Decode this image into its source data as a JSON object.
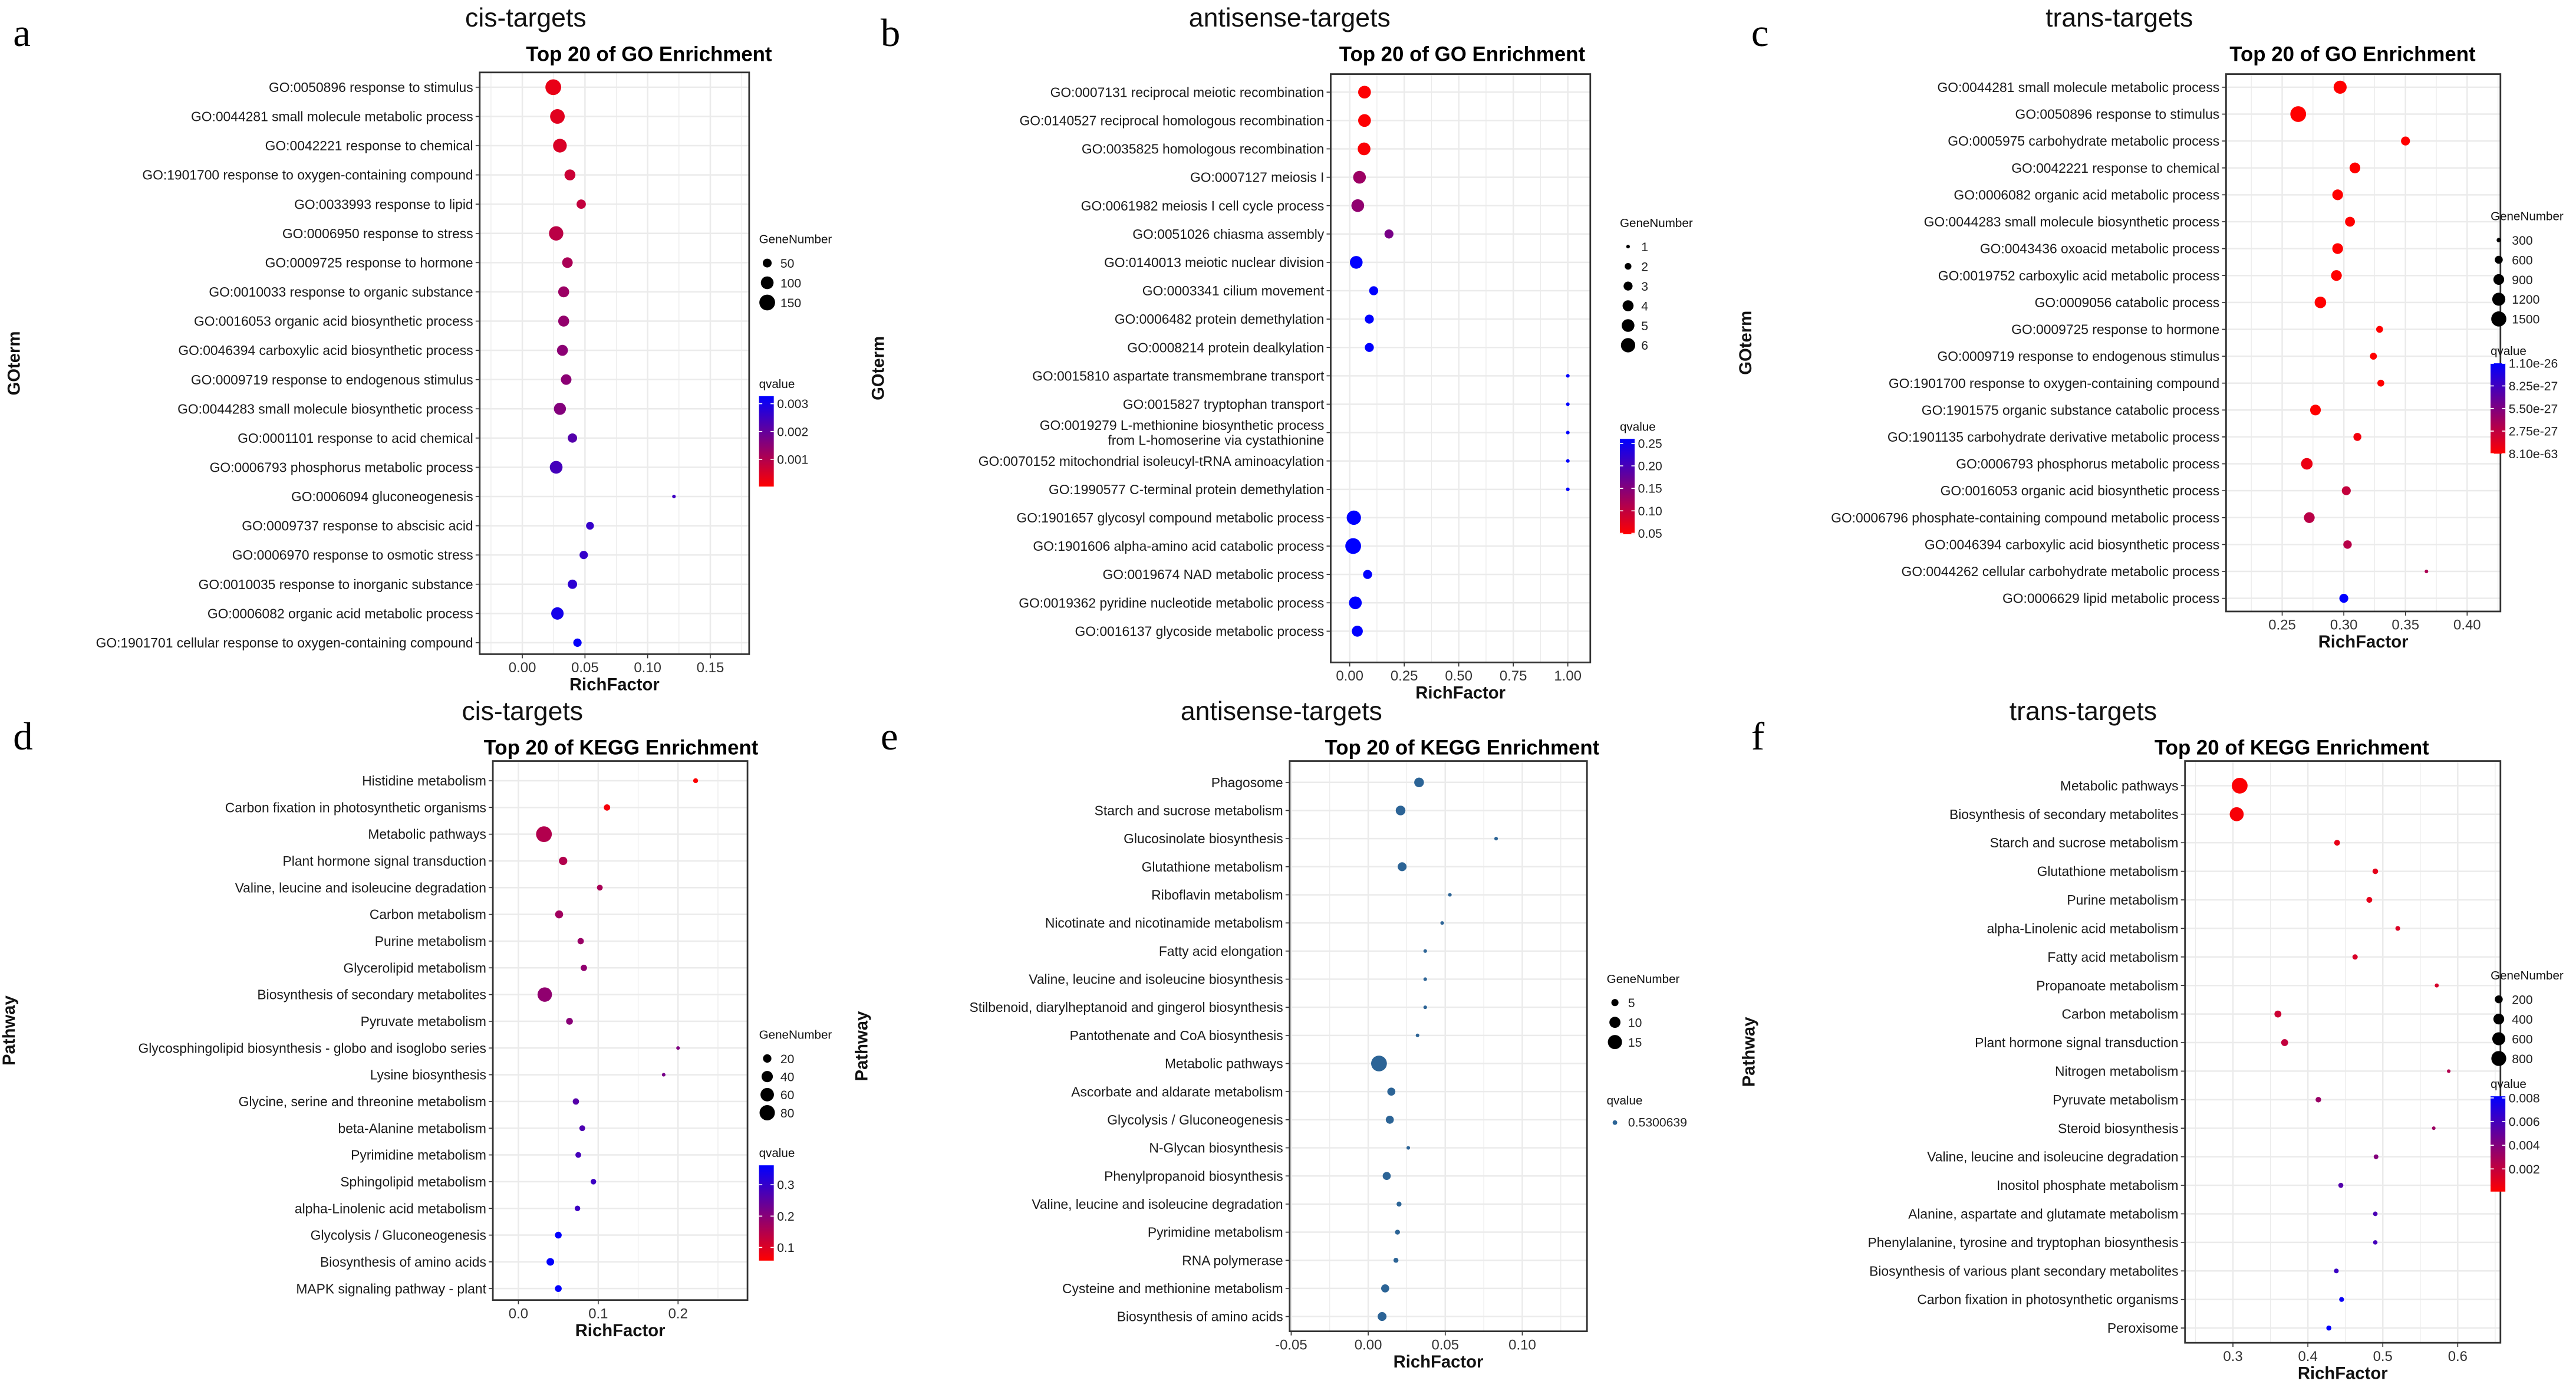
{
  "colors": {
    "low": "#ff0000",
    "high": "#0000ff",
    "single": "#2c6496"
  },
  "chart_data": [
    {
      "type": "scatter",
      "panel": "a",
      "subtitle": "cis-targets",
      "title": "Top 20 of GO Enrichment",
      "xlabel": "RichFactor",
      "ylabel": "GOterm",
      "xlim": [
        -0.034,
        0.181
      ],
      "xticks": [
        0,
        0.05,
        0.1,
        0.15
      ],
      "xtick_labels": [
        "0.00",
        "0.05",
        "0.10",
        "0.15"
      ],
      "categories": [
        "GO:0050896 response to stimulus",
        "GO:0044281 small molecule metabolic process",
        "GO:0042221 response to chemical",
        "GO:1901700 response to oxygen-containing compound",
        "GO:0033993 response to lipid",
        "GO:0006950 response to stress",
        "GO:0009725 response to hormone",
        "GO:0010033 response to organic substance",
        "GO:0016053 organic acid biosynthetic process",
        "GO:0046394 carboxylic acid biosynthetic process",
        "GO:0009719 response to endogenous stimulus",
        "GO:0044283 small molecule biosynthetic process",
        "GO:0001101 response to acid chemical",
        "GO:0006793 phosphorus metabolic process",
        "GO:0006094 gluconeogenesis",
        "GO:0009737 response to abscisic acid",
        "GO:0006970 response to osmotic stress",
        "GO:0010035 response to inorganic substance",
        "GO:0006082 organic acid metabolic process",
        "GO:1901701 cellular response to oxygen-containing compound"
      ],
      "x": [
        0.0247,
        0.028,
        0.03,
        0.038,
        0.047,
        0.027,
        0.036,
        0.033,
        0.033,
        0.032,
        0.035,
        0.03,
        0.04,
        0.027,
        0.121,
        0.054,
        0.049,
        0.04,
        0.028,
        0.044
      ],
      "gene_number": [
        150,
        130,
        115,
        75,
        55,
        125,
        70,
        75,
        75,
        75,
        70,
        90,
        55,
        100,
        10,
        40,
        45,
        55,
        95,
        45
      ],
      "qvalue": [
        0.0003,
        0.0004,
        0.0005,
        0.0007,
        0.0008,
        0.0009,
        0.0011,
        0.0013,
        0.0014,
        0.0015,
        0.0015,
        0.0016,
        0.0022,
        0.0024,
        0.0025,
        0.0026,
        0.0026,
        0.0027,
        0.003,
        0.0032
      ],
      "size_legend": {
        "title": "GeneNumber",
        "breaks": [
          50,
          100,
          150
        ],
        "labels": [
          "50",
          "100",
          "150"
        ]
      },
      "color_legend": {
        "title": "qvalue",
        "limits": [
          2e-05,
          0.00327
        ],
        "breaks": [
          0.001,
          0.002,
          0.003
        ],
        "labels": [
          "0.001",
          "0.002",
          "0.003"
        ]
      }
    },
    {
      "type": "scatter",
      "panel": "b",
      "subtitle": "antisense-targets",
      "title": "Top 20 of GO Enrichment",
      "xlabel": "RichFactor",
      "ylabel": "GOterm",
      "xlim": [
        -0.087,
        1.103
      ],
      "xticks": [
        0,
        0.25,
        0.5,
        0.75,
        1.0
      ],
      "xtick_labels": [
        "0.00",
        "0.25",
        "0.50",
        "0.75",
        "1.00"
      ],
      "categories": [
        "GO:0007131 reciprocal meiotic recombination",
        "GO:0140527 reciprocal homologous recombination",
        "GO:0035825 homologous recombination",
        "GO:0007127 meiosis I",
        "GO:0061982 meiosis I cell cycle process",
        "GO:0051026 chiasma assembly",
        "GO:0140013 meiotic nuclear division",
        "GO:0003341 cilium movement",
        "GO:0006482 protein demethylation",
        "GO:0008214 protein dealkylation",
        "GO:0015810 aspartate transmembrane transport",
        "GO:0015827 tryptophan transport",
        "GO:0019279 L-methionine biosynthetic process\nfrom L-homoserine via cystathionine",
        "GO:0070152 mitochondrial isoleucyl-tRNA aminoacylation",
        "GO:1990577 C-terminal protein demethylation",
        "GO:1901657 glycosyl compound metabolic process",
        "GO:1901606 alpha-amino acid catabolic process",
        "GO:0019674 NAD metabolic process",
        "GO:0019362 pyridine nucleotide metabolic process",
        "GO:0016137 glycoside metabolic process"
      ],
      "x": [
        0.068,
        0.068,
        0.066,
        0.045,
        0.037,
        0.18,
        0.03,
        0.11,
        0.09,
        0.09,
        1.0,
        1.0,
        1.0,
        1.0,
        1.0,
        0.019,
        0.016,
        0.082,
        0.026,
        0.035
      ],
      "gene_number": [
        5,
        5,
        5,
        5,
        5,
        3,
        5,
        3,
        3,
        3,
        1,
        1,
        1,
        1,
        1,
        6,
        7,
        3,
        5,
        4
      ],
      "qvalue": [
        0.05,
        0.05,
        0.052,
        0.13,
        0.14,
        0.16,
        0.26,
        0.26,
        0.26,
        0.26,
        0.26,
        0.26,
        0.26,
        0.26,
        0.26,
        0.26,
        0.26,
        0.26,
        0.26,
        0.26
      ],
      "size_legend": {
        "title": "GeneNumber",
        "breaks": [
          1,
          2,
          3,
          4,
          5,
          6
        ],
        "labels": [
          "1",
          "2",
          "3",
          "4",
          "5",
          "6"
        ]
      },
      "color_legend": {
        "title": "qvalue",
        "limits": [
          0.048,
          0.26
        ],
        "breaks": [
          0.05,
          0.1,
          0.15,
          0.2,
          0.25
        ],
        "labels": [
          "0.05",
          "0.10",
          "0.15",
          "0.20",
          "0.25"
        ]
      }
    },
    {
      "type": "scatter",
      "panel": "c",
      "subtitle": "trans-targets",
      "title": "Top 20 of GO Enrichment",
      "xlabel": "RichFactor",
      "ylabel": "GOterm",
      "xlim": [
        0.2045,
        0.427
      ],
      "xticks": [
        0.25,
        0.3,
        0.35,
        0.4
      ],
      "xtick_labels": [
        "0.25",
        "0.30",
        "0.35",
        "0.40"
      ],
      "categories": [
        "GO:0044281 small molecule metabolic process",
        "GO:0050896 response to stimulus",
        "GO:0005975 carbohydrate metabolic process",
        "GO:0042221 response to chemical",
        "GO:0006082 organic acid metabolic process",
        "GO:0044283 small molecule biosynthetic process",
        "GO:0043436 oxoacid metabolic process",
        "GO:0019752 carboxylic acid metabolic process",
        "GO:0009056 catabolic process",
        "GO:0009725 response to hormone",
        "GO:0009719 response to endogenous stimulus",
        "GO:1901700 response to oxygen-containing compound",
        "GO:1901575 organic substance catabolic process",
        "GO:1901135 carbohydrate derivative metabolic process",
        "GO:0006793 phosphorus metabolic process",
        "GO:0016053 organic acid biosynthetic process",
        "GO:0006796 phosphate-containing compound metabolic process",
        "GO:0046394 carboxylic acid biosynthetic process",
        "GO:0044262 cellular carbohydrate metabolic process",
        "GO:0006629 lipid metabolic process"
      ],
      "x": [
        0.297,
        0.263,
        0.35,
        0.309,
        0.295,
        0.305,
        0.295,
        0.294,
        0.281,
        0.329,
        0.324,
        0.33,
        0.277,
        0.311,
        0.27,
        0.302,
        0.272,
        0.303,
        0.367,
        0.3
      ],
      "gene_number": [
        1200,
        1600,
        700,
        900,
        900,
        800,
        900,
        900,
        1000,
        500,
        500,
        500,
        900,
        600,
        1000,
        700,
        900,
        650,
        250,
        700
      ],
      "qvalue": [
        1e-60,
        1e-58,
        1e-50,
        1e-48,
        1e-45,
        1e-44,
        1e-44,
        1e-43,
        1e-42,
        1e-40,
        1e-40,
        1e-38,
        1e-36,
        5e-28,
        8e-28,
        2.6e-27,
        3e-27,
        3.1e-27,
        3.6e-27,
        1.1e-26
      ],
      "size_legend": {
        "title": "GeneNumber",
        "breaks": [
          300,
          600,
          900,
          1200,
          1500
        ],
        "labels": [
          "300",
          "600",
          "900",
          "1200",
          "1500"
        ]
      },
      "color_legend": {
        "title": "qvalue",
        "limits": [
          8.1e-63,
          1.1e-26
        ],
        "breaks": [
          8.1e-63,
          2.75e-27,
          5.5e-27,
          8.25e-27,
          1.1e-26
        ],
        "labels": [
          "8.10e-63",
          "2.75e-27",
          "5.50e-27",
          "8.25e-27",
          "1.10e-26"
        ]
      }
    },
    {
      "type": "scatter",
      "panel": "d",
      "subtitle": "cis-targets",
      "title": "Top 20 of KEGG Enrichment",
      "xlabel": "RichFactor",
      "ylabel": "Pathway",
      "xlim": [
        -0.032,
        0.287
      ],
      "xticks": [
        0,
        0.1,
        0.2
      ],
      "xtick_labels": [
        "0.0",
        "0.1",
        "0.2"
      ],
      "categories": [
        "Histidine metabolism",
        "Carbon fixation in photosynthetic organisms",
        "Metabolic pathways",
        "Plant hormone signal transduction",
        "Valine, leucine and isoleucine degradation",
        "Carbon metabolism",
        "Purine metabolism",
        "Glycerolipid metabolism",
        "Biosynthesis of secondary metabolites",
        "Pyruvate metabolism",
        "Glycosphingolipid biosynthesis - globo and isoglobo series",
        "Lysine biosynthesis",
        "Glycine, serine and threonine metabolism",
        "beta-Alanine metabolism",
        "Pyrimidine metabolism",
        "Sphingolipid metabolism",
        "alpha-Linolenic acid metabolism",
        "Glycolysis / Gluconeogenesis",
        "Biosynthesis of amino acids",
        "MAPK signaling pathway - plant"
      ],
      "x": [
        0.222,
        0.111,
        0.032,
        0.056,
        0.102,
        0.051,
        0.078,
        0.082,
        0.033,
        0.064,
        0.2,
        0.182,
        0.072,
        0.08,
        0.075,
        0.094,
        0.074,
        0.05,
        0.04,
        0.05
      ],
      "gene_number": [
        5,
        10,
        85,
        20,
        8,
        18,
        10,
        10,
        70,
        12,
        2,
        2,
        10,
        8,
        8,
        7,
        7,
        12,
        16,
        12
      ],
      "qvalue": [
        0.06,
        0.07,
        0.15,
        0.15,
        0.16,
        0.17,
        0.18,
        0.19,
        0.19,
        0.2,
        0.21,
        0.22,
        0.26,
        0.27,
        0.28,
        0.29,
        0.29,
        0.36,
        0.36,
        0.36
      ],
      "size_legend": {
        "title": "GeneNumber",
        "breaks": [
          20,
          40,
          60,
          80
        ],
        "labels": [
          "20",
          "40",
          "60",
          "80"
        ]
      },
      "color_legend": {
        "title": "qvalue",
        "limits": [
          0.058,
          0.362
        ],
        "breaks": [
          0.1,
          0.2,
          0.3
        ],
        "labels": [
          "0.1",
          "0.2",
          "0.3"
        ]
      }
    },
    {
      "type": "scatter",
      "panel": "e",
      "subtitle": "antisense-targets",
      "title": "Top 20 of KEGG Enrichment",
      "xlabel": "RichFactor",
      "ylabel": "Pathway",
      "xlim": [
        -0.051,
        0.142
      ],
      "xticks": [
        -0.05,
        0,
        0.05,
        0.1
      ],
      "xtick_labels": [
        "-0.05",
        "0.00",
        "0.05",
        "0.10"
      ],
      "categories": [
        "Phagosome",
        "Starch and sucrose metabolism",
        "Glucosinolate biosynthesis",
        "Glutathione metabolism",
        "Riboflavin metabolism",
        "Nicotinate and nicotinamide metabolism",
        "Fatty acid elongation",
        "Valine, leucine and isoleucine biosynthesis",
        "Stilbenoid, diarylheptanoid and gingerol biosynthesis",
        "Pantothenate and CoA biosynthesis",
        "Metabolic pathways",
        "Ascorbate and aldarate metabolism",
        "Glycolysis / Gluconeogenesis",
        "N-Glycan biosynthesis",
        "Phenylpropanoid biosynthesis",
        "Valine, leucine and isoleucine degradation",
        "Pyrimidine metabolism",
        "RNA polymerase",
        "Cysteine and methionine metabolism",
        "Biosynthesis of amino acids"
      ],
      "x": [
        0.033,
        0.021,
        0.083,
        0.022,
        0.053,
        0.048,
        0.037,
        0.037,
        0.037,
        0.032,
        0.007,
        0.015,
        0.014,
        0.026,
        0.012,
        0.02,
        0.019,
        0.018,
        0.011,
        0.009
      ],
      "gene_number": [
        8,
        8,
        2,
        7,
        2,
        2,
        2,
        2,
        2,
        2,
        18,
        6,
        6,
        2,
        6,
        3,
        3,
        3,
        6,
        7
      ],
      "qvalue": [
        0.5300639,
        0.5300639,
        0.5300639,
        0.5300639,
        0.5300639,
        0.5300639,
        0.5300639,
        0.5300639,
        0.5300639,
        0.5300639,
        0.5300639,
        0.5300639,
        0.5300639,
        0.5300639,
        0.5300639,
        0.5300639,
        0.5300639,
        0.5300639,
        0.5300639,
        0.5300639
      ],
      "size_legend": {
        "title": "GeneNumber",
        "breaks": [
          5,
          10,
          15
        ],
        "labels": [
          "5",
          "10",
          "15"
        ]
      },
      "color_legend": {
        "title": "qvalue",
        "single": true,
        "labels": [
          "0.5300639"
        ]
      }
    },
    {
      "type": "scatter",
      "panel": "f",
      "subtitle": "trans-targets",
      "title": "Top 20 of KEGG Enrichment",
      "xlabel": "RichFactor",
      "ylabel": "Pathway",
      "xlim": [
        0.236,
        0.657
      ],
      "xticks": [
        0.3,
        0.4,
        0.5,
        0.6
      ],
      "xtick_labels": [
        "0.3",
        "0.4",
        "0.5",
        "0.6"
      ],
      "categories": [
        "Metabolic pathways",
        "Biosynthesis of secondary metabolites",
        "Starch and sucrose metabolism",
        "Glutathione metabolism",
        "Purine metabolism",
        "alpha-Linolenic acid metabolism",
        "Fatty acid metabolism",
        "Propanoate metabolism",
        "Carbon metabolism",
        "Plant hormone signal transduction",
        "Nitrogen metabolism",
        "Pyruvate metabolism",
        "Steroid biosynthesis",
        "Valine, leucine and isoleucine degradation",
        "Inositol phosphate metabolism",
        "Alanine, aspartate and glutamate metabolism",
        "Phenylalanine, tyrosine and tryptophan biosynthesis",
        "Biosynthesis of various plant secondary metabolites",
        "Carbon fixation in photosynthetic organisms",
        "Peroxisome"
      ],
      "x": [
        0.309,
        0.305,
        0.439,
        0.49,
        0.482,
        0.52,
        0.463,
        0.572,
        0.36,
        0.369,
        0.588,
        0.414,
        0.568,
        0.491,
        0.444,
        0.49,
        0.49,
        0.438,
        0.445,
        0.428
      ],
      "gene_number": [
        900,
        700,
        100,
        90,
        100,
        60,
        80,
        40,
        150,
        150,
        30,
        90,
        30,
        60,
        70,
        55,
        50,
        60,
        65,
        70
      ],
      "qvalue": [
        0.0002,
        0.0003,
        0.0008,
        0.0009,
        0.0009,
        0.0012,
        0.0013,
        0.0014,
        0.0017,
        0.002,
        0.0025,
        0.0033,
        0.0032,
        0.004,
        0.0055,
        0.0058,
        0.006,
        0.0063,
        0.0079,
        0.0081
      ],
      "size_legend": {
        "title": "GeneNumber",
        "breaks": [
          200,
          400,
          600,
          800
        ],
        "labels": [
          "200",
          "400",
          "600",
          "800"
        ]
      },
      "color_legend": {
        "title": "qvalue",
        "limits": [
          8e-05,
          0.00814
        ],
        "breaks": [
          0.002,
          0.004,
          0.006,
          0.008
        ],
        "labels": [
          "0.002",
          "0.004",
          "0.006",
          "0.008"
        ]
      }
    }
  ]
}
